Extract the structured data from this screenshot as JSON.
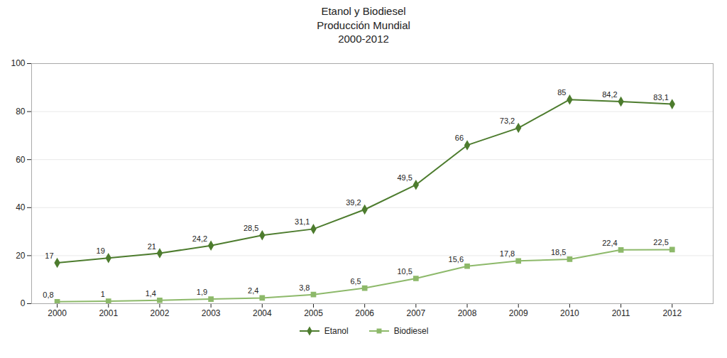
{
  "chart_data": {
    "type": "line",
    "title": "Etanol y Biodiesel\nProducción Mundial\n2000-2012",
    "x": [
      2000,
      2001,
      2002,
      2003,
      2004,
      2005,
      2006,
      2007,
      2008,
      2009,
      2010,
      2011,
      2012
    ],
    "series": [
      {
        "name": "Etanol",
        "color": "#4d7c2e",
        "marker": "diamond",
        "values": [
          17,
          19,
          21,
          24.2,
          28.5,
          31.1,
          39.2,
          49.5,
          66,
          73.2,
          85,
          84.2,
          83.1
        ],
        "value_labels": [
          "17",
          "19",
          "21",
          "24,2",
          "28,5",
          "31,1",
          "39,2",
          "49,5",
          "66",
          "73,2",
          "85",
          "84,2",
          "83,1"
        ]
      },
      {
        "name": "Biodiesel",
        "color": "#8db96a",
        "marker": "square",
        "values": [
          0.8,
          1,
          1.4,
          1.9,
          2.4,
          3.8,
          6.5,
          10.5,
          15.6,
          17.8,
          18.5,
          22.4,
          22.5
        ],
        "value_labels": [
          "0,8",
          "1",
          "1,4",
          "1,9",
          "2,4",
          "3,8",
          "6,5",
          "10,5",
          "15,6",
          "17,8",
          "18,5",
          "22,4",
          "22,5"
        ]
      }
    ],
    "xlim": [
      1999.5,
      2012.8
    ],
    "xticks": [
      2000,
      2001,
      2002,
      2003,
      2004,
      2005,
      2006,
      2007,
      2008,
      2009,
      2010,
      2011,
      2012
    ],
    "ylim": [
      0,
      100
    ],
    "yticks": [
      0,
      20,
      40,
      60,
      80,
      100
    ],
    "grid": true,
    "data_labels": true,
    "legend": "bottom"
  }
}
